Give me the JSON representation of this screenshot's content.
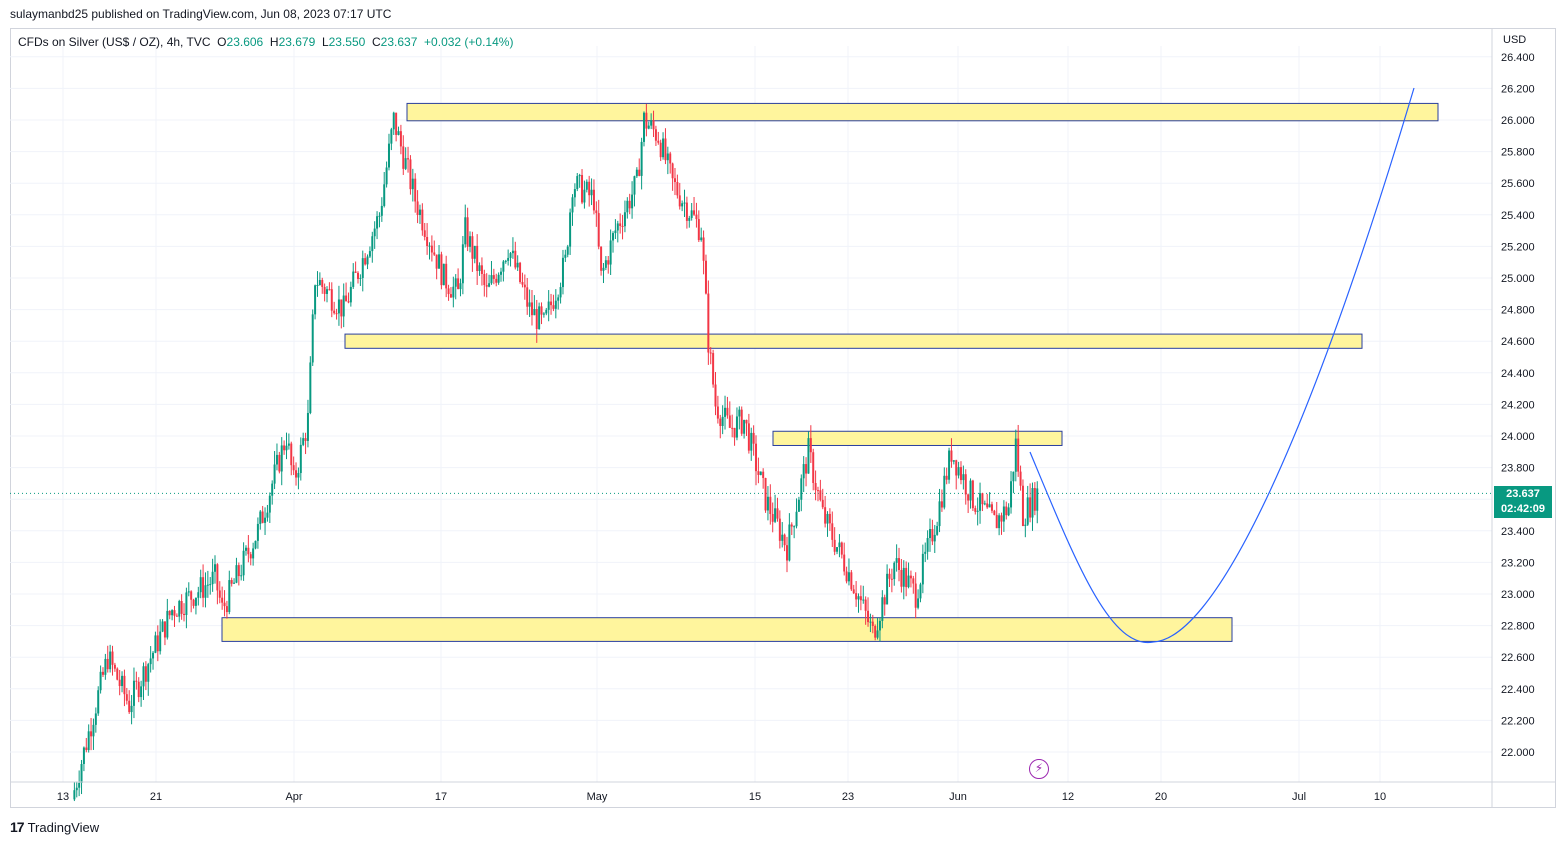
{
  "header": {
    "publisher_line": "sulaymanbd25 published on TradingView.com, Jun 08, 2023 07:17 UTC"
  },
  "legend": {
    "symbol": "CFDs on Silver (US$ / OZ), 4h, TVC",
    "open_label": "O",
    "open": "23.606",
    "high_label": "H",
    "high": "23.679",
    "low_label": "L",
    "low": "23.550",
    "close_label": "C",
    "close": "23.637",
    "change": "+0.032 (+0.14%)"
  },
  "axis": {
    "currency": "USD"
  },
  "price_tag": {
    "price": "23.637",
    "countdown": "02:42:09"
  },
  "footer": {
    "brand": "TradingView",
    "logo": "tradingview-logo"
  },
  "icons": {
    "event": "lightning-icon"
  },
  "colors": {
    "up": "#089981",
    "down": "#f23645",
    "zone_fill": "#fff59d",
    "zone_border": "#2a3f9e",
    "curve": "#2962ff"
  },
  "chart_data": {
    "type": "candlestick",
    "timeframe": "4h",
    "ylim": [
      21.8,
      26.45
    ],
    "y_ticks": [
      "26.400",
      "26.200",
      "26.000",
      "25.800",
      "25.600",
      "25.400",
      "25.200",
      "25.000",
      "24.800",
      "24.600",
      "24.400",
      "24.200",
      "24.000",
      "23.800",
      "23.600",
      "23.400",
      "23.200",
      "23.000",
      "22.800",
      "22.600",
      "22.400",
      "22.200",
      "22.000"
    ],
    "x_ticks": [
      "13",
      "21",
      "Apr",
      "17",
      "May",
      "15",
      "23",
      "Jun",
      "12",
      "20",
      "Jul",
      "10"
    ],
    "last_price": 23.637,
    "series_path": [
      [
        0,
        21.7
      ],
      [
        5,
        22.6
      ],
      [
        8,
        22.3
      ],
      [
        14,
        22.9
      ],
      [
        20,
        23.1
      ],
      [
        21,
        22.9
      ],
      [
        26,
        23.4
      ],
      [
        30,
        24.0
      ],
      [
        31,
        23.7
      ],
      [
        33,
        24.1
      ],
      [
        34,
        25.0
      ],
      [
        38,
        24.8
      ],
      [
        43,
        25.4
      ],
      [
        45,
        26.0
      ],
      [
        48,
        25.5
      ],
      [
        52,
        25.0
      ],
      [
        54,
        24.9
      ],
      [
        55,
        25.3
      ],
      [
        58,
        24.9
      ],
      [
        61,
        25.2
      ],
      [
        64,
        24.8
      ],
      [
        66,
        24.7
      ],
      [
        69,
        25.1
      ],
      [
        70,
        25.6
      ],
      [
        73,
        25.5
      ],
      [
        74,
        25.0
      ],
      [
        76,
        25.3
      ],
      [
        79,
        25.6
      ],
      [
        80,
        26.0
      ],
      [
        82,
        25.9
      ],
      [
        84,
        25.6
      ],
      [
        88,
        25.3
      ],
      [
        89,
        24.6
      ],
      [
        90,
        24.2
      ],
      [
        92,
        24.05
      ],
      [
        94,
        24.1
      ],
      [
        97,
        23.6
      ],
      [
        100,
        23.3
      ],
      [
        103,
        23.9
      ],
      [
        105,
        23.5
      ],
      [
        109,
        23.1
      ],
      [
        112,
        22.75
      ],
      [
        115,
        23.2
      ],
      [
        118,
        23.0
      ],
      [
        121,
        23.5
      ],
      [
        123,
        23.9
      ],
      [
        126,
        23.6
      ],
      [
        129,
        23.45
      ],
      [
        131,
        23.55
      ],
      [
        132,
        23.95
      ],
      [
        133,
        23.5
      ],
      [
        135,
        23.64
      ]
    ],
    "zones": [
      {
        "from": 25.995,
        "to": 26.105
      },
      {
        "from": 24.555,
        "to": 24.645
      },
      {
        "from": 23.94,
        "to": 24.03
      },
      {
        "from": 22.7,
        "to": 22.85
      }
    ]
  }
}
